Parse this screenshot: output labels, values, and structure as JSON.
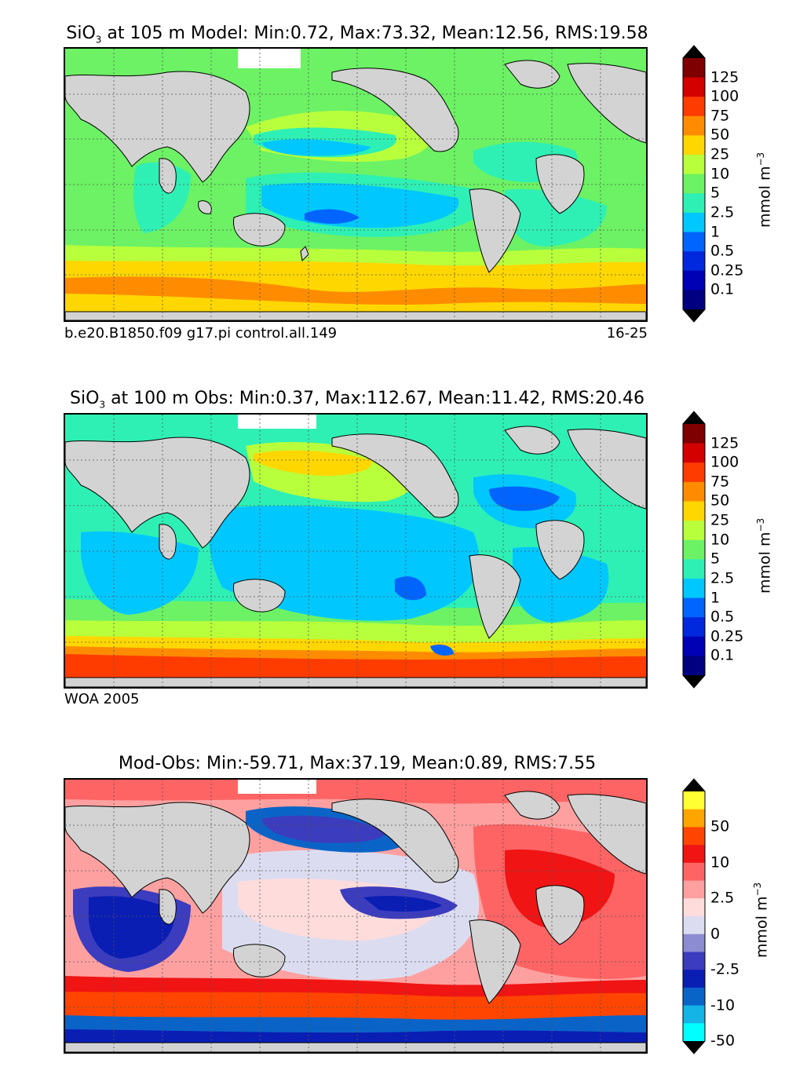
{
  "panels": [
    {
      "title_prefix": "SiO",
      "title_sub": "3",
      "title_rest": " at 105 m Model: Min:0.72, Max:73.32, Mean:12.56, RMS:19.58",
      "footer_left": "b.e20.B1850.f09 g17.pi control.all.149",
      "footer_right": "16-25",
      "colorbar": {
        "labels": [
          "125",
          "100",
          "75",
          "50",
          "25",
          "10",
          "5",
          "2.5",
          "1",
          "0.5",
          "0.25",
          "0.1"
        ],
        "colors": [
          "#7f0000",
          "#d40000",
          "#ff3c00",
          "#ff8c00",
          "#ffd700",
          "#b8ff3c",
          "#6cf264",
          "#2ef0b4",
          "#00c8ff",
          "#0064ff",
          "#0028dc",
          "#0000b4",
          "#000080"
        ],
        "unit": "mmol m",
        "unit_sup": "−3"
      }
    },
    {
      "title_prefix": "SiO",
      "title_sub": "3",
      "title_rest": " at 100 m Obs: Min:0.37, Max:112.67, Mean:11.42, RMS:20.46",
      "footer_left": "WOA 2005",
      "footer_right": "",
      "colorbar": {
        "labels": [
          "125",
          "100",
          "75",
          "50",
          "25",
          "10",
          "5",
          "2.5",
          "1",
          "0.5",
          "0.25",
          "0.1"
        ],
        "colors": [
          "#7f0000",
          "#d40000",
          "#ff3c00",
          "#ff8c00",
          "#ffd700",
          "#b8ff3c",
          "#6cf264",
          "#2ef0b4",
          "#00c8ff",
          "#0064ff",
          "#0028dc",
          "#0000b4",
          "#000080"
        ],
        "unit": "mmol m",
        "unit_sup": "−3"
      }
    },
    {
      "title_prefix": "",
      "title_sub": "",
      "title_rest": "Mod-Obs: Min:-59.71, Max:37.19, Mean:0.89, RMS:7.55",
      "footer_left": "",
      "footer_right": "",
      "colorbar": {
        "labels": [
          "50",
          "10",
          "2.5",
          "0",
          "-2.5",
          "-10",
          "-50"
        ],
        "colors": [
          "#ffff33",
          "#ffa500",
          "#ff4500",
          "#f01414",
          "#ff6464",
          "#ffa0a0",
          "#ffdcdc",
          "#dcdcf0",
          "#8c8cd2",
          "#3c3cbe",
          "#0a1eb4",
          "#0a64c8",
          "#14b4e6",
          "#00ffff"
        ],
        "unit": "mmol m",
        "unit_sup": "−3"
      }
    }
  ]
}
